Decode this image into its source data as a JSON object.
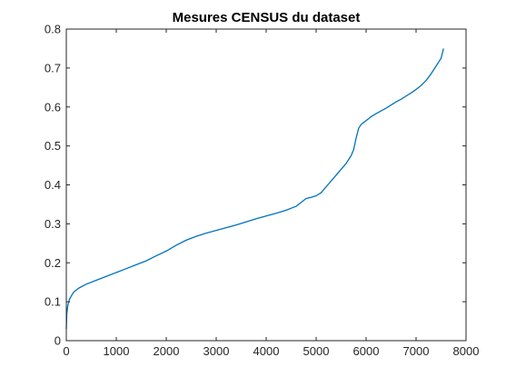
{
  "chart_data": {
    "type": "line",
    "title": "Mesures CENSUS du dataset",
    "xlabel": "",
    "ylabel": "",
    "xlim": [
      0,
      8000
    ],
    "ylim": [
      0,
      0.8
    ],
    "x_ticks": [
      0,
      1000,
      2000,
      3000,
      4000,
      5000,
      6000,
      7000,
      8000
    ],
    "x_tick_labels": [
      "0",
      "1000",
      "2000",
      "3000",
      "4000",
      "5000",
      "6000",
      "7000",
      "8000"
    ],
    "y_ticks": [
      0,
      0.1,
      0.2,
      0.3,
      0.4,
      0.5,
      0.6,
      0.7,
      0.8
    ],
    "y_tick_labels": [
      "0",
      "0.1",
      "0.2",
      "0.3",
      "0.4",
      "0.5",
      "0.6",
      "0.7",
      "0.8"
    ],
    "grid": false,
    "series": [
      {
        "color": "#0072bd",
        "x": [
          0,
          10,
          30,
          60,
          100,
          150,
          250,
          400,
          600,
          800,
          1000,
          1200,
          1400,
          1600,
          1800,
          2000,
          2200,
          2400,
          2600,
          2800,
          3000,
          3200,
          3400,
          3600,
          3800,
          4000,
          4200,
          4400,
          4600,
          4700,
          4800,
          4900,
          5000,
          5100,
          5200,
          5300,
          5400,
          5500,
          5600,
          5700,
          5750,
          5800,
          5850,
          5900,
          6000,
          6100,
          6200,
          6300,
          6400,
          6500,
          6600,
          6700,
          6800,
          6900,
          7000,
          7100,
          7200,
          7300,
          7350,
          7400,
          7450,
          7500,
          7520,
          7540,
          7550
        ],
        "y": [
          0.03,
          0.07,
          0.09,
          0.105,
          0.115,
          0.125,
          0.135,
          0.145,
          0.155,
          0.165,
          0.175,
          0.185,
          0.195,
          0.205,
          0.218,
          0.23,
          0.245,
          0.258,
          0.268,
          0.276,
          0.283,
          0.29,
          0.297,
          0.305,
          0.313,
          0.32,
          0.327,
          0.335,
          0.345,
          0.355,
          0.365,
          0.368,
          0.372,
          0.38,
          0.395,
          0.41,
          0.425,
          0.44,
          0.455,
          0.475,
          0.49,
          0.52,
          0.545,
          0.555,
          0.565,
          0.575,
          0.583,
          0.59,
          0.597,
          0.605,
          0.613,
          0.62,
          0.628,
          0.636,
          0.645,
          0.655,
          0.668,
          0.685,
          0.695,
          0.705,
          0.715,
          0.725,
          0.735,
          0.745,
          0.75
        ]
      }
    ]
  }
}
